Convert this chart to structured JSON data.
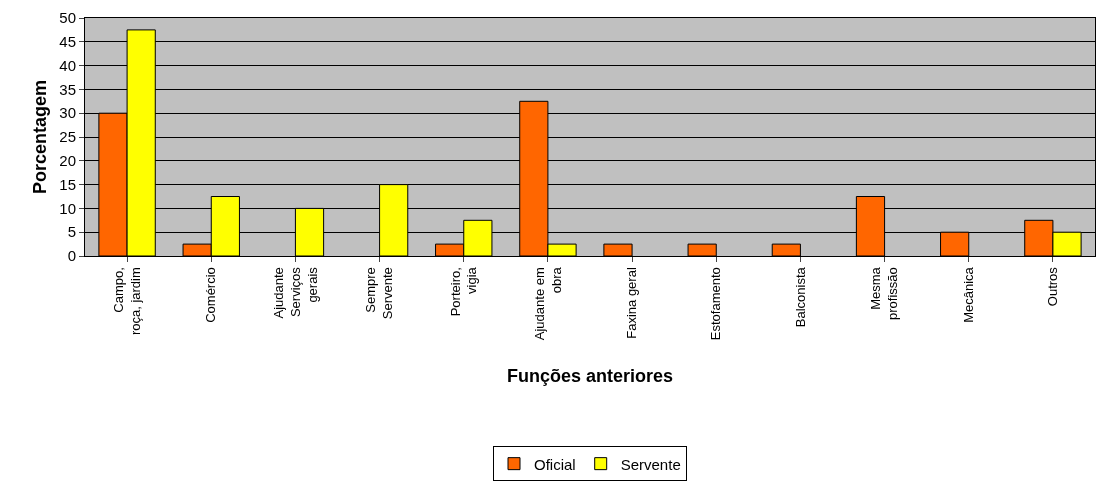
{
  "chart_data": {
    "type": "bar",
    "xlabel": "Funções anteriores",
    "ylabel": "Porcentagem",
    "categories": [
      "Campo,\nroça, jardim",
      "Comércio",
      "Ajudante\nServiços\ngerais",
      "Sempre\nServente",
      "Porteiro,\nvigia",
      "Ajudante em\nobra",
      "Faxina geral",
      "Estofamento",
      "Balconista",
      "Mesma\nprofissão",
      "Mecânica",
      "Outros"
    ],
    "series": [
      {
        "name": "Oficial",
        "color": "#ff6600",
        "values": [
          30,
          2.5,
          null,
          null,
          2.5,
          32.5,
          2.5,
          2.5,
          2.5,
          12.5,
          5,
          7.5
        ]
      },
      {
        "name": "Servente",
        "color": "#ffff00",
        "values": [
          47.5,
          12.5,
          10,
          15,
          7.5,
          2.5,
          null,
          null,
          null,
          null,
          null,
          5
        ]
      }
    ],
    "ylim": [
      0,
      50
    ],
    "yticks": [
      0,
      5,
      10,
      15,
      20,
      25,
      30,
      35,
      40,
      45,
      50
    ],
    "grid": "y",
    "legend": "bottom"
  }
}
